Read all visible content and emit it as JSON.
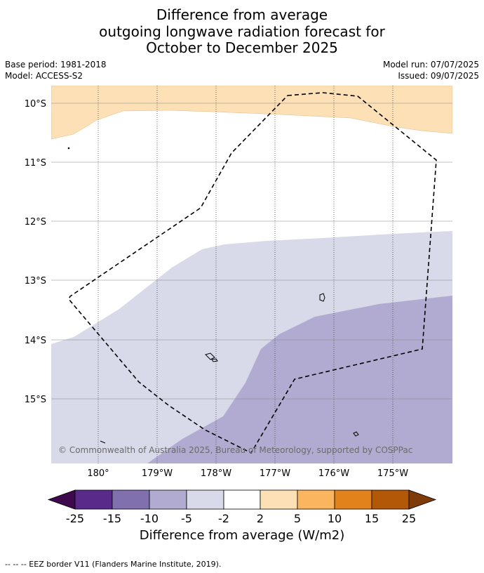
{
  "title": {
    "line1": "Difference from average",
    "line2": "outgoing longwave radiation forecast for",
    "line3": "October to December 2025"
  },
  "meta": {
    "base_period": "Base period: 1981-2018",
    "model": "Model: ACCESS-S2",
    "model_run": "Model run: 07/07/2025",
    "issued": "Issued: 09/07/2025"
  },
  "map": {
    "lat_labels": [
      "10°S",
      "11°S",
      "12°S",
      "13°S",
      "14°S",
      "15°S"
    ],
    "lon_labels": [
      "180°",
      "179°W",
      "178°W",
      "177°W",
      "176°W",
      "175°W"
    ],
    "copyright": "© Commonwealth of Australia 2025, Bureau of Meteorology, supported by COSPPac",
    "colors": {
      "pos_2_5": "#fde0b6",
      "neg_2_5": "#d8d9e9",
      "neg_5_10": "#b1abd1"
    }
  },
  "colorbar": {
    "labels": [
      "-25",
      "-15",
      "-10",
      "-5",
      "-2",
      "2",
      "5",
      "10",
      "15",
      "25"
    ],
    "colors": [
      "#3f0a4d",
      "#5a2a8a",
      "#8070ae",
      "#b1abd1",
      "#d8d9e9",
      "#ffffff",
      "#fde0b6",
      "#fbb55f",
      "#e1821a",
      "#b35806",
      "#7f3b08"
    ],
    "title": "Difference from average (W/m2)"
  },
  "footer": {
    "eez_note": "--  --  -- EEZ border V11 (Flanders Marine Institute, 2019)."
  }
}
